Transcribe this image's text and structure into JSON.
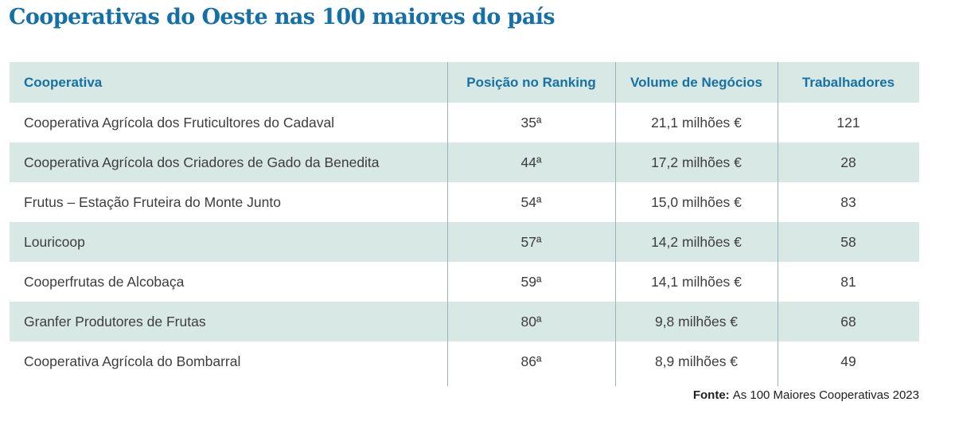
{
  "chart_data": {
    "type": "table",
    "title": "Cooperativas do Oeste nas 100 maiores do país",
    "columns": [
      "Cooperativa",
      "Posição no Ranking",
      "Volume de Negócios",
      "Trabalhadores"
    ],
    "rows": [
      {
        "name": "Cooperativa Agrícola dos Fruticultores do Cadaval",
        "ranking": "35ª",
        "ranking_value": 35,
        "volume": "21,1 milhões €",
        "volume_millions_eur": 21.1,
        "workers": "121",
        "workers_value": 121
      },
      {
        "name": "Cooperativa Agrícola dos Criadores de Gado da Benedita",
        "ranking": "44ª",
        "ranking_value": 44,
        "volume": "17,2 milhões €",
        "volume_millions_eur": 17.2,
        "workers": "28",
        "workers_value": 28
      },
      {
        "name": "Frutus – Estação Fruteira do Monte Junto",
        "ranking": "54ª",
        "ranking_value": 54,
        "volume": "15,0 milhões €",
        "volume_millions_eur": 15.0,
        "workers": "83",
        "workers_value": 83
      },
      {
        "name": "Louricoop",
        "ranking": "57ª",
        "ranking_value": 57,
        "volume": "14,2 milhões €",
        "volume_millions_eur": 14.2,
        "workers": "58",
        "workers_value": 58
      },
      {
        "name": "Cooperfrutas de Alcobaça",
        "ranking": "59ª",
        "ranking_value": 59,
        "volume": "14,1 milhões €",
        "volume_millions_eur": 14.1,
        "workers": "81",
        "workers_value": 81
      },
      {
        "name": "Granfer Produtores de Frutas",
        "ranking": "80ª",
        "ranking_value": 80,
        "volume": "9,8 milhões €",
        "volume_millions_eur": 9.8,
        "workers": "68",
        "workers_value": 68
      },
      {
        "name": "Cooperativa Agrícola do Bombarral",
        "ranking": "86ª",
        "ranking_value": 86,
        "volume": "8,9 milhões €",
        "volume_millions_eur": 8.9,
        "workers": "49",
        "workers_value": 49
      }
    ],
    "source_label": "Fonte:",
    "source_text": "As 100 Maiores Cooperativas 2023"
  },
  "colors": {
    "title_blue": "#1470a6",
    "header_text_blue": "#1571a6",
    "row_teal": "#d8e8e4",
    "divider": "#9db4c4",
    "body_text": "#3d3d3c"
  }
}
